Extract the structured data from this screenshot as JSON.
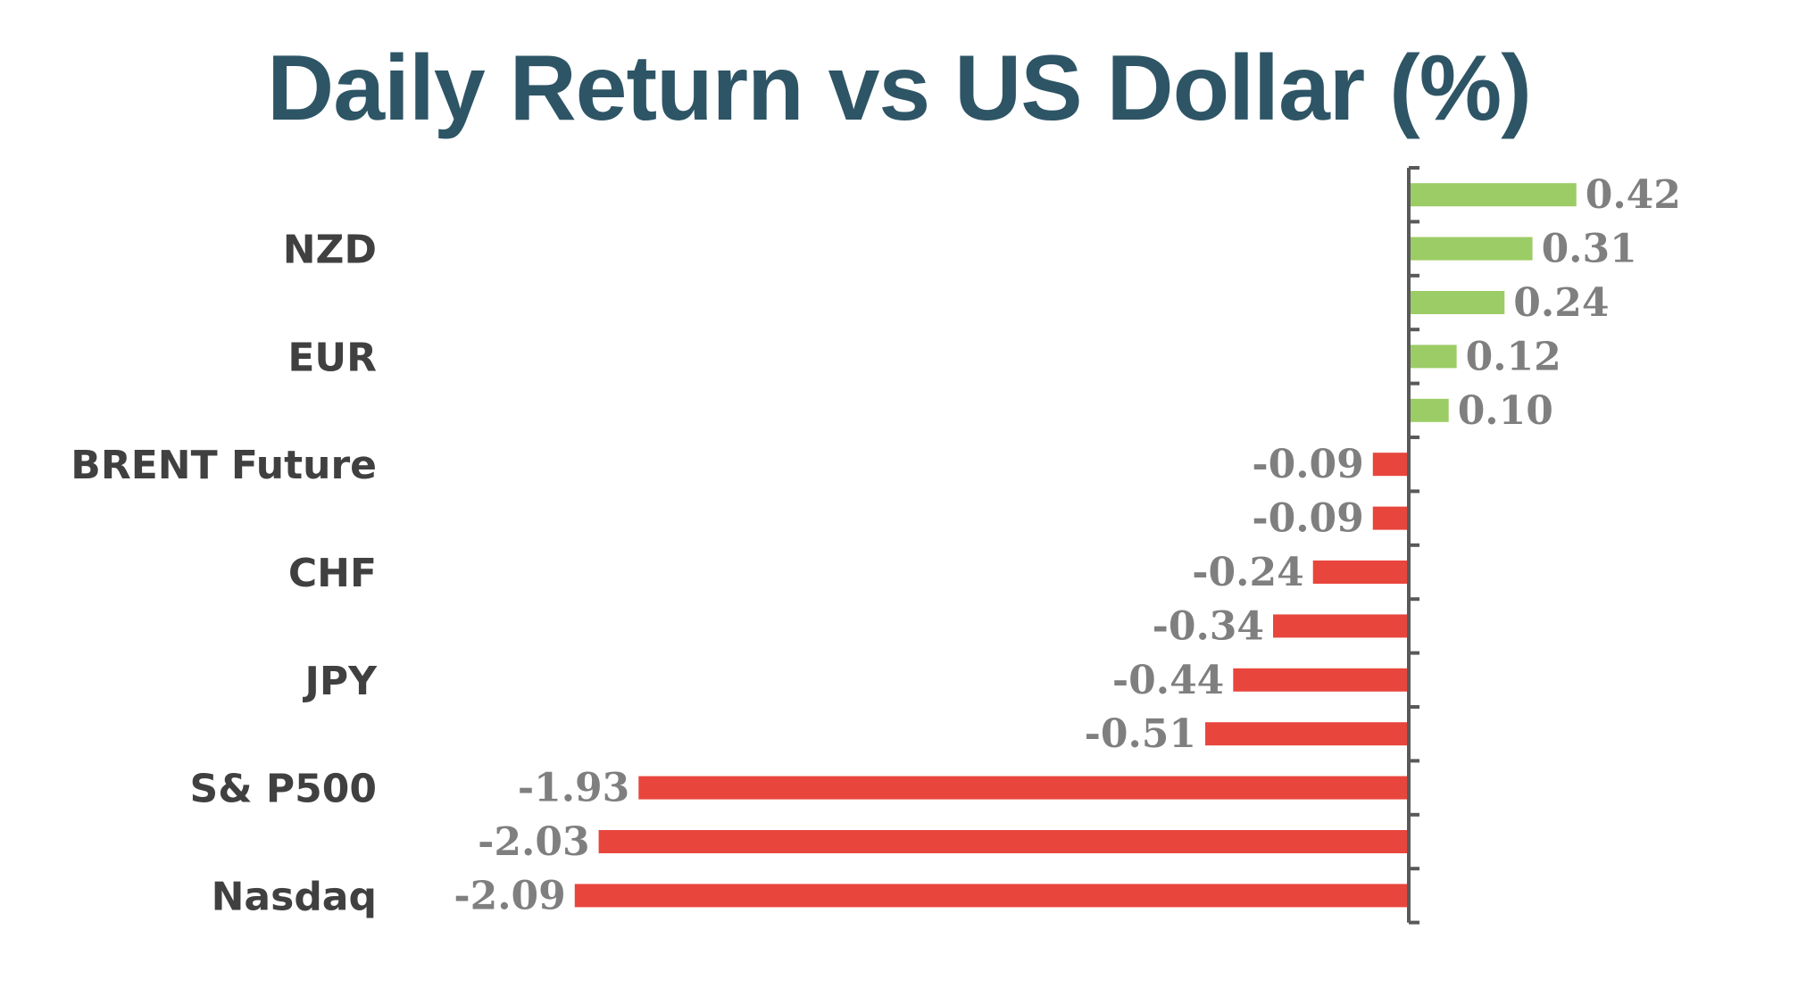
{
  "chart_data": {
    "type": "bar",
    "orientation": "horizontal",
    "title": "Daily Return vs US Dollar (%)",
    "categories": [
      "",
      "NZD",
      "",
      "EUR",
      "",
      "BRENT Future",
      "",
      "CHF",
      "",
      "JPY",
      "",
      "S& P500",
      "",
      "Nasdaq"
    ],
    "values": [
      0.42,
      0.31,
      0.24,
      0.12,
      0.1,
      -0.09,
      -0.09,
      -0.24,
      -0.34,
      -0.44,
      -0.51,
      -1.93,
      -2.03,
      -2.09
    ],
    "value_labels": [
      "0.42",
      "0.31",
      "0.24",
      "0.12",
      "0.10",
      "-0.09",
      "-0.09",
      "-0.24",
      "-0.34",
      "-0.44",
      "-0.51",
      "-1.93",
      "-2.03",
      "-2.09"
    ],
    "positive_color": "#9ccc65",
    "negative_color": "#e8453c",
    "axis_color": "#595959",
    "xlim": [
      -2.09,
      0.42
    ],
    "grid": false,
    "legend": "none"
  }
}
